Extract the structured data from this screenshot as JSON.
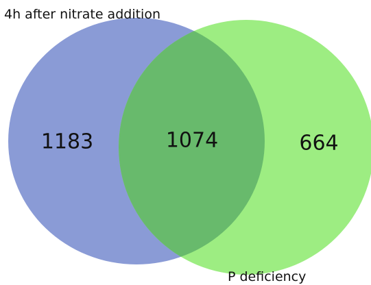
{
  "sets": [
    {
      "label": "4h after nitrate addition",
      "only": "1183"
    },
    {
      "label": "P deficiency",
      "only": "664"
    }
  ],
  "intersection": "1074"
}
